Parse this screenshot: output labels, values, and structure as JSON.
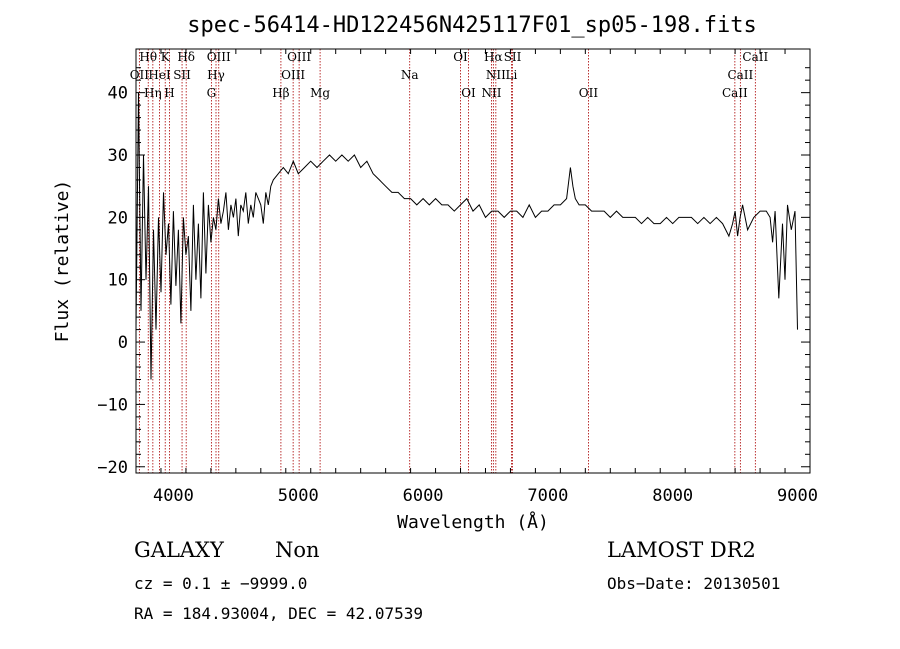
{
  "chart_data": {
    "type": "line",
    "title": "spec-56414-HD122456N425117F01_sp05-198.fits",
    "xlabel": "Wavelength (Å)",
    "ylabel": "Flux (relative)",
    "xlim": [
      3700,
      9100
    ],
    "ylim": [
      -21,
      47
    ],
    "x_ticks": [
      4000,
      5000,
      6000,
      7000,
      8000,
      9000
    ],
    "x_tick_labels": [
      "4000",
      "5000",
      "6000",
      "7000",
      "8000",
      "9000"
    ],
    "y_ticks": [
      -20,
      -10,
      0,
      10,
      20,
      30,
      40
    ],
    "y_tick_labels": [
      "−20",
      "−10",
      "0",
      "10",
      "20",
      "30",
      "40"
    ],
    "grid": false,
    "series": [
      {
        "x": [
          3700,
          3720,
          3740,
          3760,
          3780,
          3800,
          3820,
          3840,
          3860,
          3880,
          3900,
          3920,
          3940,
          3960,
          3980,
          4000,
          4020,
          4040,
          4060,
          4080,
          4100,
          4120,
          4140,
          4160,
          4180,
          4200,
          4220,
          4240,
          4260,
          4280,
          4300,
          4320,
          4340,
          4360,
          4380,
          4400,
          4420,
          4440,
          4460,
          4480,
          4500,
          4520,
          4540,
          4560,
          4580,
          4600,
          4620,
          4640,
          4660,
          4680,
          4700,
          4720,
          4740,
          4760,
          4780,
          4800,
          4840,
          4880,
          4920,
          4960,
          5000,
          5050,
          5100,
          5150,
          5200,
          5250,
          5300,
          5350,
          5400,
          5450,
          5500,
          5550,
          5600,
          5650,
          5700,
          5750,
          5800,
          5850,
          5900,
          5950,
          6000,
          6050,
          6100,
          6150,
          6200,
          6250,
          6300,
          6350,
          6400,
          6450,
          6500,
          6550,
          6600,
          6650,
          6700,
          6750,
          6800,
          6850,
          6900,
          6950,
          7000,
          7050,
          7100,
          7150,
          7180,
          7200,
          7220,
          7250,
          7300,
          7350,
          7400,
          7450,
          7500,
          7550,
          7600,
          7650,
          7700,
          7750,
          7800,
          7850,
          7900,
          7950,
          8000,
          8050,
          8100,
          8150,
          8200,
          8250,
          8300,
          8350,
          8400,
          8450,
          8480,
          8500,
          8520,
          8540,
          8560,
          8600,
          8650,
          8700,
          8750,
          8780,
          8800,
          8820,
          8850,
          8880,
          8900,
          8920,
          8950,
          8980,
          9000
        ],
        "y": [
          2,
          40,
          5,
          30,
          10,
          25,
          -6,
          18,
          2,
          20,
          8,
          24,
          14,
          19,
          6,
          21,
          9,
          18,
          3,
          20,
          14,
          17,
          5,
          22,
          10,
          19,
          7,
          24,
          11,
          22,
          16,
          20,
          18,
          23,
          19,
          21,
          24,
          18,
          22,
          20,
          23,
          17,
          22,
          21,
          24,
          19,
          22,
          20,
          24,
          23,
          22,
          19,
          24,
          22,
          25,
          26,
          27,
          28,
          27,
          29,
          27,
          28,
          29,
          28,
          29,
          30,
          29,
          30,
          29,
          30,
          28,
          29,
          27,
          26,
          25,
          24,
          24,
          23,
          23,
          22,
          23,
          22,
          23,
          22,
          22,
          21,
          22,
          23,
          21,
          22,
          20,
          21,
          21,
          20,
          21,
          21,
          20,
          22,
          20,
          21,
          21,
          22,
          22,
          23,
          28,
          25,
          23,
          22,
          22,
          21,
          21,
          21,
          20,
          21,
          20,
          20,
          20,
          19,
          20,
          19,
          19,
          20,
          19,
          20,
          20,
          20,
          19,
          20,
          19,
          20,
          19,
          17,
          19,
          21,
          17,
          20,
          22,
          18,
          20,
          21,
          21,
          20,
          16,
          21,
          7,
          19,
          10,
          22,
          18,
          21,
          2
        ]
      }
    ],
    "spectral_lines": [
      {
        "label": "Hθ",
        "wl": 3798,
        "row": 0
      },
      {
        "label": "K",
        "wl": 3934,
        "row": 0
      },
      {
        "label": "Hδ",
        "wl": 4102,
        "row": 0
      },
      {
        "label": "OIII",
        "wl": 4363,
        "row": 0
      },
      {
        "label": "OIII",
        "wl": 5007,
        "row": 0
      },
      {
        "label": "OI",
        "wl": 6300,
        "row": 0
      },
      {
        "label": "Hα",
        "wl": 6563,
        "row": 0
      },
      {
        "label": "SII",
        "wl": 6717,
        "row": 0
      },
      {
        "label": "CaII",
        "wl": 8662,
        "row": 0
      },
      {
        "label": "OII",
        "wl": 3727,
        "row": 1
      },
      {
        "label": "HeI",
        "wl": 3889,
        "row": 1
      },
      {
        "label": "SII",
        "wl": 4069,
        "row": 1
      },
      {
        "label": "Hγ",
        "wl": 4341,
        "row": 1
      },
      {
        "label": "OIII",
        "wl": 4959,
        "row": 1
      },
      {
        "label": "Na",
        "wl": 5893,
        "row": 1
      },
      {
        "label": "NII",
        "wl": 6583,
        "row": 1
      },
      {
        "label": "Li",
        "wl": 6708,
        "row": 1
      },
      {
        "label": "CaII",
        "wl": 8542,
        "row": 1
      },
      {
        "label": "Hη",
        "wl": 3835,
        "row": 2
      },
      {
        "label": "H",
        "wl": 3968,
        "row": 2
      },
      {
        "label": "G",
        "wl": 4304,
        "row": 2
      },
      {
        "label": "Hβ",
        "wl": 4861,
        "row": 2
      },
      {
        "label": "Mg",
        "wl": 5175,
        "row": 2
      },
      {
        "label": "OI",
        "wl": 6364,
        "row": 2
      },
      {
        "label": "NII",
        "wl": 6548,
        "row": 2
      },
      {
        "label": "OII",
        "wl": 7325,
        "row": 2
      },
      {
        "label": "CaII",
        "wl": 8498,
        "row": 2
      }
    ],
    "colors": {
      "line": "#000000",
      "marker_lines": "#aa0000"
    }
  },
  "footer": {
    "classification": "GALAXY",
    "subclass": "Non",
    "survey": "LAMOST DR2",
    "cz": "cz = 0.1 ± −9999.0",
    "obs_date": "Obs−Date: 20130501",
    "coords": "RA = 184.93004, DEC =  42.07539"
  }
}
